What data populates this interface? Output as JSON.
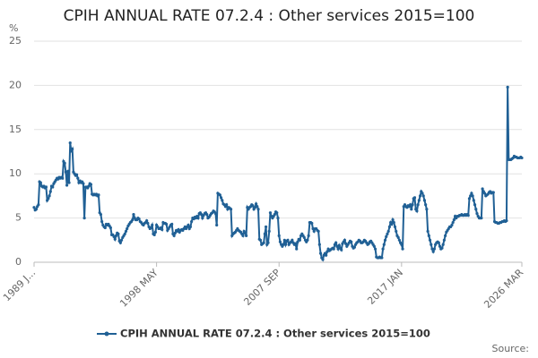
{
  "chart_data": {
    "type": "line",
    "title": "CPIH ANNUAL RATE 07.2.4 : Other services 2015=100",
    "y_label": "%",
    "source": "Source:",
    "categories": [
      "1989 J...",
      null,
      null,
      null,
      null,
      null,
      null,
      null,
      null,
      null,
      null,
      null,
      null,
      null,
      null,
      null,
      null,
      null,
      null,
      null,
      null,
      null,
      null,
      null,
      null,
      null,
      null,
      null,
      null,
      null,
      null,
      null,
      null,
      null,
      null,
      null,
      null,
      null,
      null,
      null,
      null,
      null,
      null,
      null,
      null,
      null,
      null,
      null,
      null,
      null,
      null,
      null,
      null,
      null,
      null,
      null,
      null,
      null,
      null,
      null,
      null,
      null,
      null,
      null,
      null,
      null,
      null,
      null,
      null,
      null,
      null,
      null,
      null,
      null,
      null,
      null,
      null,
      null,
      null,
      null,
      null,
      null,
      null,
      null,
      null,
      null,
      null,
      null,
      null,
      null,
      null,
      null,
      null,
      null,
      null,
      null,
      null,
      null,
      null,
      null,
      null,
      null,
      null,
      null,
      null,
      null,
      null,
      null,
      null,
      null,
      null,
      null,
      "1998 MAY",
      null,
      null,
      null,
      null,
      null,
      null,
      null,
      null,
      null,
      null,
      null,
      null,
      null,
      null,
      null,
      null,
      null,
      null,
      null,
      null,
      null,
      null,
      null,
      null,
      null,
      null,
      null,
      null,
      null,
      null,
      null,
      null,
      null,
      null,
      null,
      null,
      null,
      null,
      null,
      null,
      null,
      null,
      null,
      null,
      null,
      null,
      null,
      null,
      null,
      null,
      null,
      null,
      null,
      null,
      null,
      null,
      null,
      null,
      null,
      null,
      null,
      null,
      null,
      null,
      null,
      null,
      null,
      null,
      null,
      null,
      null,
      null,
      null,
      null,
      null,
      null,
      null,
      null,
      null,
      null,
      null,
      null,
      null,
      null,
      null,
      null,
      null,
      null,
      null,
      null,
      null,
      null,
      null,
      null,
      null,
      null,
      null,
      null,
      null,
      null,
      null,
      null,
      null,
      null,
      null,
      null,
      null,
      null,
      null,
      null,
      null,
      "2007 SEP",
      null,
      null,
      null,
      null,
      null,
      null,
      null,
      null,
      null,
      null,
      null,
      null,
      null,
      null,
      null,
      null,
      null,
      null,
      null,
      null,
      null,
      null,
      null,
      null,
      null,
      null,
      null,
      null,
      null,
      null,
      null,
      null,
      null,
      null,
      null,
      null,
      null,
      null,
      null,
      null,
      null,
      null,
      null,
      null,
      null,
      null,
      null,
      null,
      null,
      null,
      null,
      null,
      null,
      null,
      null,
      null,
      null,
      null,
      null,
      null,
      null,
      null,
      null,
      null,
      null,
      null,
      null,
      null,
      null,
      null,
      null,
      null,
      null,
      null,
      null,
      null,
      null,
      null,
      null,
      null,
      null,
      null,
      null,
      null,
      null,
      null,
      null,
      null,
      null,
      null,
      null,
      null,
      null,
      null,
      null,
      null,
      null,
      null,
      null,
      null,
      null,
      null,
      null,
      null,
      null,
      null,
      null,
      null,
      null,
      null,
      null,
      "2017 JAN",
      null,
      null,
      null,
      null,
      null,
      null,
      null,
      null,
      null,
      null,
      null,
      null,
      null,
      null,
      null,
      null,
      null,
      null,
      null,
      null,
      null,
      null,
      null,
      null,
      null,
      null,
      null,
      null,
      null,
      null,
      null,
      null,
      null,
      null,
      null,
      null,
      null,
      null,
      null,
      null,
      null,
      null,
      null,
      null,
      null,
      null,
      null,
      null,
      null,
      null,
      null,
      null,
      null,
      null,
      null,
      null,
      null,
      null,
      null,
      null,
      null,
      null,
      null,
      null,
      null,
      null,
      null,
      null,
      null,
      null,
      null,
      null,
      null,
      null,
      null,
      null,
      null,
      null,
      null,
      null,
      null,
      null,
      null,
      null,
      null,
      null,
      null,
      null,
      null,
      null,
      null,
      null,
      null,
      null,
      null,
      null,
      null,
      null,
      null,
      null,
      null,
      null,
      null,
      null,
      null,
      null,
      null,
      null,
      null,
      "2026 MAR"
    ],
    "series": [
      {
        "name": "CPIH ANNUAL RATE 07.2.4 : Other services 2015=100",
        "color": "#206095",
        "values": [
          6.2,
          5.9,
          6.0,
          6.3,
          6.5,
          9.1,
          9.0,
          8.6,
          8.5,
          8.6,
          8.4,
          8.5,
          7.0,
          7.2,
          7.5,
          8.0,
          8.6,
          8.5,
          8.9,
          9.1,
          9.3,
          9.5,
          9.4,
          9.6,
          9.5,
          9.6,
          9.5,
          11.4,
          11.2,
          10.2,
          8.7,
          10.3,
          9.0,
          13.5,
          12.6,
          12.8,
          10.2,
          10.0,
          9.8,
          9.9,
          9.5,
          9.0,
          9.2,
          9.0,
          9.1,
          8.9,
          5.0,
          8.5,
          8.5,
          8.4,
          8.6,
          8.9,
          8.8,
          7.7,
          7.6,
          7.7,
          7.6,
          7.7,
          7.5,
          7.6,
          5.6,
          5.4,
          4.6,
          4.2,
          4.0,
          3.9,
          4.3,
          4.2,
          4.3,
          4.1,
          3.9,
          3.1,
          3.1,
          2.9,
          2.6,
          3.0,
          3.3,
          3.2,
          2.4,
          2.2,
          2.5,
          2.8,
          3.0,
          3.2,
          3.5,
          3.8,
          4.1,
          4.3,
          4.5,
          4.6,
          4.8,
          5.4,
          5.0,
          4.8,
          4.8,
          5.0,
          4.9,
          4.6,
          4.5,
          4.3,
          4.2,
          4.4,
          4.5,
          4.7,
          4.4,
          4.0,
          3.8,
          3.9,
          4.2,
          3.2,
          3.1,
          3.4,
          4.2,
          4.0,
          3.8,
          3.8,
          3.9,
          3.7,
          4.5,
          4.4,
          4.4,
          4.3,
          3.6,
          3.8,
          4.0,
          4.2,
          4.3,
          3.2,
          3.0,
          3.3,
          3.6,
          3.5,
          3.7,
          3.4,
          3.6,
          3.7,
          3.6,
          3.8,
          4.0,
          3.8,
          4.0,
          4.2,
          3.8,
          4.0,
          4.6,
          5.0,
          4.9,
          5.1,
          5.0,
          5.2,
          5.0,
          5.5,
          5.6,
          5.4,
          5.0,
          5.3,
          5.5,
          5.6,
          5.4,
          5.0,
          5.1,
          5.3,
          5.5,
          5.6,
          5.8,
          5.7,
          5.5,
          4.2,
          7.8,
          7.7,
          7.6,
          7.3,
          7.0,
          6.6,
          6.5,
          6.3,
          6.5,
          6.0,
          6.2,
          6.1,
          6.0,
          3.0,
          3.2,
          3.3,
          3.4,
          3.6,
          3.8,
          3.6,
          3.5,
          3.4,
          3.2,
          3.0,
          3.5,
          3.3,
          3.0,
          6.2,
          6.0,
          6.2,
          6.3,
          6.5,
          6.4,
          6.0,
          6.2,
          6.6,
          6.3,
          6.0,
          2.6,
          2.5,
          2.0,
          2.1,
          2.2,
          3.2,
          4.0,
          2.0,
          2.2,
          3.5,
          5.6,
          5.2,
          5.0,
          5.2,
          5.4,
          5.7,
          5.6,
          5.0,
          3.0,
          2.3,
          2.0,
          1.8,
          2.0,
          2.5,
          2.0,
          2.4,
          2.5,
          2.0,
          2.2,
          2.3,
          2.5,
          2.2,
          2.0,
          2.1,
          1.5,
          2.3,
          2.6,
          2.5,
          3.0,
          3.2,
          3.0,
          2.8,
          2.5,
          2.3,
          2.5,
          3.0,
          4.5,
          4.5,
          4.4,
          3.8,
          3.5,
          3.8,
          3.8,
          3.6,
          3.5,
          2.0,
          1.0,
          0.5,
          0.3,
          0.8,
          1.0,
          0.8,
          1.2,
          1.5,
          1.3,
          1.4,
          1.5,
          1.6,
          1.5,
          2.0,
          2.2,
          1.8,
          1.5,
          1.9,
          1.6,
          1.4,
          2.1,
          2.3,
          2.5,
          2.1,
          1.8,
          2.0,
          2.2,
          2.4,
          2.3,
          1.8,
          1.6,
          1.7,
          2.0,
          2.2,
          2.3,
          2.5,
          2.4,
          2.2,
          2.2,
          2.3,
          2.5,
          2.4,
          2.2,
          2.0,
          2.1,
          2.3,
          2.4,
          2.2,
          2.0,
          1.8,
          1.5,
          0.6,
          0.5,
          0.5,
          0.6,
          0.5,
          0.5,
          1.5,
          2.0,
          2.5,
          2.9,
          3.2,
          3.5,
          4.0,
          4.5,
          4.3,
          4.8,
          4.5,
          4.0,
          3.5,
          3.0,
          2.8,
          2.5,
          2.2,
          2.0,
          1.5,
          6.3,
          6.5,
          6.3,
          6.2,
          6.4,
          6.3,
          6.5,
          6.0,
          6.5,
          7.2,
          7.3,
          6.0,
          5.8,
          6.5,
          7.0,
          7.5,
          8.0,
          7.8,
          7.5,
          7.0,
          6.5,
          6.0,
          3.5,
          3.0,
          2.5,
          2.0,
          1.5,
          1.2,
          1.5,
          2.0,
          2.2,
          2.3,
          2.2,
          1.8,
          1.5,
          1.6,
          2.0,
          2.5,
          3.0,
          3.4,
          3.6,
          3.8,
          4.0,
          4.0,
          4.2,
          4.5,
          4.8,
          5.2,
          5.0,
          5.2,
          5.2,
          5.3,
          5.3,
          5.4,
          5.3,
          5.3,
          5.4,
          5.3,
          5.4,
          5.3,
          7.2,
          7.5,
          7.8,
          7.5,
          7.0,
          6.5,
          6.0,
          5.5,
          5.2,
          5.0,
          5.0,
          5.0,
          8.3,
          8.0,
          7.8,
          7.5,
          7.6,
          7.7,
          7.9,
          8.0,
          7.8,
          7.9,
          7.9,
          4.6,
          4.5,
          4.5,
          4.4,
          4.4,
          4.5,
          4.5,
          4.6,
          4.6,
          4.7,
          4.6,
          4.7,
          19.8,
          11.6,
          11.6,
          11.6,
          11.7,
          11.8,
          12.0,
          11.9,
          11.9,
          11.8,
          11.8,
          11.8,
          11.9,
          11.8
        ]
      }
    ],
    "ylim": [
      0,
      25
    ],
    "yticks": [
      0,
      5,
      10,
      15,
      20,
      25
    ],
    "grid": true,
    "markers": true,
    "legend": "bottom"
  }
}
